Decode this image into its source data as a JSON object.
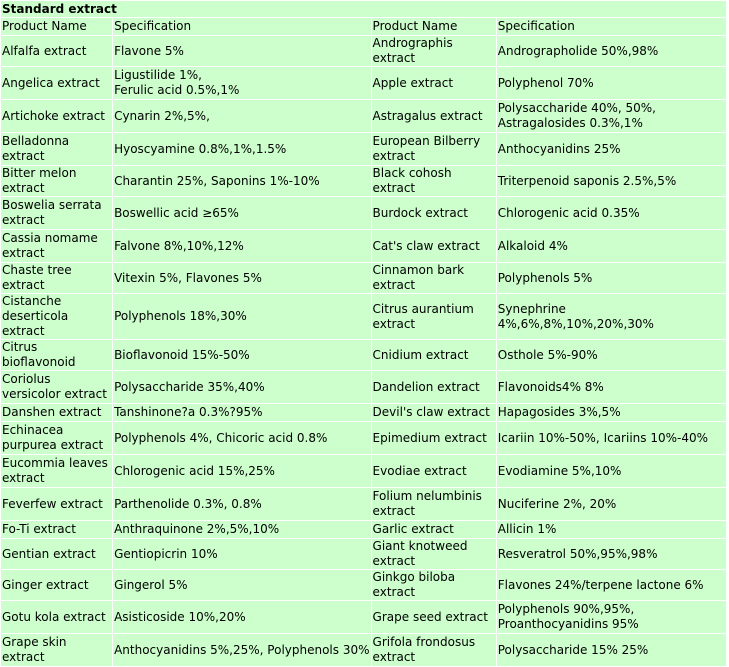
{
  "table": {
    "title": "Standard extract",
    "headers": [
      "Product Name",
      "Specification",
      "Product Name",
      "Specification"
    ],
    "rows": [
      {
        "name1": "Alfalfa extract",
        "spec1": "Flavone 5%",
        "name2": "Andrographis extract",
        "spec2": "Andrographolide 50%,98%",
        "h": 17
      },
      {
        "name1": "Angelica extract",
        "spec1": "Ligustilide 1%,\nFerulic acid 0.5%,1%",
        "name2": "Apple extract",
        "spec2": "Polyphenol 70%",
        "h": 32
      },
      {
        "name1": "Artichoke extract",
        "spec1": "Cynarin 2%,5%,",
        "name2": "Astragalus extract",
        "spec2": "Polysaccharide 40%, 50%,\nAstragalosides 0.3%,1%",
        "h": 32
      },
      {
        "name1": "Belladonna extract",
        "spec1": "Hyoscyamine 0.8%,1%,1.5%",
        "name2": "European Bilberry extract",
        "spec2": "Anthocyanidins 25%",
        "h": 32
      },
      {
        "name1": "Bitter melon extract",
        "spec1": "Charantin 25%, Saponins 1%-10%",
        "name2": "Black cohosh extract",
        "spec2": "Triterpenoid saponis 2.5%,5%",
        "h": 17
      },
      {
        "name1": "Boswelia serrata extract",
        "spec1": "Boswellic acid ≥65%",
        "name2": "Burdock extract",
        "spec2": "Chlorogenic acid 0.35%",
        "h": 32
      },
      {
        "name1": "Cassia nomame extract",
        "spec1": "Falvone 8%,10%,12%",
        "name2": "Cat's claw extract",
        "spec2": "Alkaloid 4%",
        "h": 32
      },
      {
        "name1": "Chaste tree extract",
        "spec1": "Vitexin 5%, Flavones 5%",
        "name2": "Cinnamon bark extract",
        "spec2": "Polyphenols 5%",
        "h": 17
      },
      {
        "name1": "Cistanche deserticola extract",
        "spec1": "Polyphenols 18%,30%",
        "name2": "Citrus aurantium extract",
        "spec2": "Synephrine 4%,6%,8%,10%,20%,30%",
        "h": 32
      },
      {
        "name1": "Citrus bioflavonoid",
        "spec1": "Bioflavonoid 15%-50%",
        "name2": "Cnidium extract",
        "spec2": "Osthole 5%-90%",
        "h": 17
      },
      {
        "name1": "Coriolus versicolor extract",
        "spec1": "Polysaccharide 35%,40%",
        "name2": "Dandelion extract",
        "spec2": "Flavonoids4% 8%",
        "h": 32
      },
      {
        "name1": "Danshen extract",
        "spec1": "Tanshinone?a 0.3%?95%",
        "name2": "Devil's claw extract",
        "spec2": "Hapagosides 3%,5%",
        "h": 17
      },
      {
        "name1": "Echinacea purpurea extract",
        "spec1": "Polyphenols 4%, Chicoric acid 0.8%",
        "name2": "Epimedium extract",
        "spec2": "Icariin 10%-50%, Icariins 10%-40%",
        "h": 32
      },
      {
        "name1": "Eucommia leaves extract",
        "spec1": "Chlorogenic acid 15%,25%",
        "name2": "Evodiae extract",
        "spec2": "Evodiamine 5%,10%",
        "h": 32
      },
      {
        "name1": "Feverfew extract",
        "spec1": "Parthenolide 0.3%, 0.8%",
        "name2": "Folium nelumbinis extract",
        "spec2": "Nuciferine 2%, 20%",
        "h": 32
      },
      {
        "name1": "Fo-Ti extract",
        "spec1": "Anthraquinone 2%,5%,10%",
        "name2": "Garlic extract",
        "spec2": "Allicin 1%",
        "h": 17
      },
      {
        "name1": "Gentian extract",
        "spec1": "Gentiopicrin 10%",
        "name2": "Giant knotweed extract",
        "spec2": "Resveratrol 50%,95%,98%",
        "h": 17
      },
      {
        "name1": "Ginger extract",
        "spec1": "Gingerol 5%",
        "name2": "Ginkgo biloba extract",
        "spec2": "Flavones 24%/terpene lactone 6%",
        "h": 17
      },
      {
        "name1": "Gotu kola extract",
        "spec1": "Asisticoside 10%,20%",
        "name2": "Grape seed extract",
        "spec2": "Polyphenols 90%,95%,\nProanthocyanidins 95%",
        "h": 32
      },
      {
        "name1": "Grape skin extract",
        "spec1": "Anthocyanidins 5%,25%, Polyphenols 30%",
        "name2": "Grifola frondosus extract",
        "spec2": "Polysaccharide 15% 25%",
        "h": 32
      }
    ]
  }
}
